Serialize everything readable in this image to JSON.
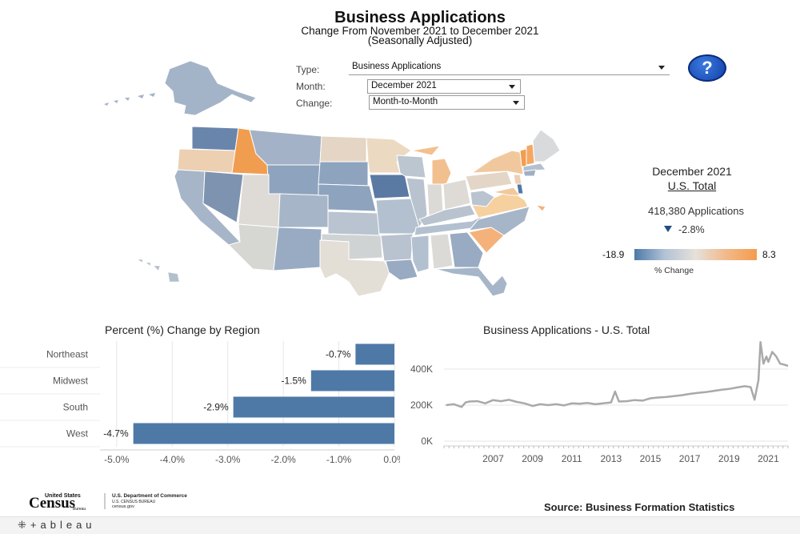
{
  "header": {
    "title": "Business Applications",
    "subtitle_line1": "Change From November 2021 to December 2021",
    "subtitle_line2": "(Seasonally Adjusted)"
  },
  "controls": {
    "type_label": "Type:",
    "type_value": "Business Applications",
    "month_label": "Month:",
    "month_value": "December 2021",
    "change_label": "Change:",
    "change_value": "Month-to-Month",
    "help_label": "?"
  },
  "summary": {
    "period": "December 2021",
    "scope": "U.S. Total",
    "applications": "418,380 Applications",
    "change": "-2.8%"
  },
  "legend": {
    "min": "-18.9",
    "max": "8.3",
    "caption": "% Change",
    "colors": [
      "#4e79a7",
      "#b3c3d6",
      "#e6e1da",
      "#f1b98a",
      "#f49c4d"
    ]
  },
  "source": "Source: Business Formation Statistics",
  "logo": {
    "census": "Census",
    "united_states": "United States",
    "bureau": "Bureau",
    "dept": "U.S. Department of Commerce",
    "dept_line2": "U.S. CENSUS BUREAU",
    "site": "census.gov"
  },
  "footer": {
    "tableau": "+ableau"
  },
  "chart_data": [
    {
      "type": "bar",
      "title": "Percent (%) Change by Region",
      "categories": [
        "Northeast",
        "Midwest",
        "South",
        "West"
      ],
      "values": [
        -0.7,
        -1.5,
        -2.9,
        -4.7
      ],
      "labels": [
        "-0.7%",
        "-1.5%",
        "-2.9%",
        "-4.7%"
      ],
      "xlim": [
        -5.3,
        0
      ],
      "ticks": [
        "-5.0%",
        "-4.0%",
        "-3.0%",
        "-2.0%",
        "-1.0%",
        "0.0%"
      ],
      "tick_values": [
        -5,
        -4,
        -3,
        -2,
        -1,
        0
      ],
      "bar_color": "#4e79a7",
      "grid": true
    },
    {
      "type": "line",
      "title": "Business Applications - U.S. Total",
      "ylim": [
        0,
        560000
      ],
      "y_ticks": [
        "0K",
        "200K",
        "400K"
      ],
      "y_tick_values": [
        0,
        200000,
        400000
      ],
      "x_ticks": [
        "2007",
        "2009",
        "2011",
        "2013",
        "2015",
        "2017",
        "2019",
        "2021"
      ],
      "x_tick_values": [
        2007,
        2009,
        2011,
        2013,
        2015,
        2017,
        2019,
        2021
      ],
      "xlim": [
        2004.5,
        2022
      ],
      "line_color": "#a9a9a9",
      "series": [
        {
          "x": [
            2004.6,
            2005.0,
            2005.4,
            2005.6,
            2005.8,
            2006.2,
            2006.6,
            2007.0,
            2007.4,
            2007.8,
            2008.2,
            2008.6,
            2009.0,
            2009.4,
            2009.8,
            2010.2,
            2010.6,
            2011.0,
            2011.4,
            2011.8,
            2012.2,
            2012.6,
            2013.0,
            2013.2,
            2013.4,
            2013.8,
            2014.2,
            2014.6,
            2015.0,
            2015.4,
            2015.8,
            2016.2,
            2016.6,
            2017.0,
            2017.4,
            2017.8,
            2018.2,
            2018.6,
            2019.0,
            2019.4,
            2019.8,
            2020.1,
            2020.3,
            2020.5,
            2020.6,
            2020.75,
            2020.9,
            2021.0,
            2021.2,
            2021.4,
            2021.6,
            2021.8,
            2022.0
          ],
          "values": [
            200000,
            205000,
            190000,
            215000,
            220000,
            222000,
            210000,
            228000,
            222000,
            230000,
            218000,
            210000,
            195000,
            205000,
            200000,
            205000,
            198000,
            210000,
            208000,
            212000,
            205000,
            210000,
            215000,
            275000,
            220000,
            222000,
            228000,
            225000,
            238000,
            242000,
            245000,
            250000,
            255000,
            262000,
            268000,
            272000,
            278000,
            285000,
            290000,
            298000,
            305000,
            300000,
            230000,
            340000,
            550000,
            430000,
            470000,
            440000,
            495000,
            470000,
            430000,
            425000,
            418000
          ]
        }
      ]
    }
  ]
}
